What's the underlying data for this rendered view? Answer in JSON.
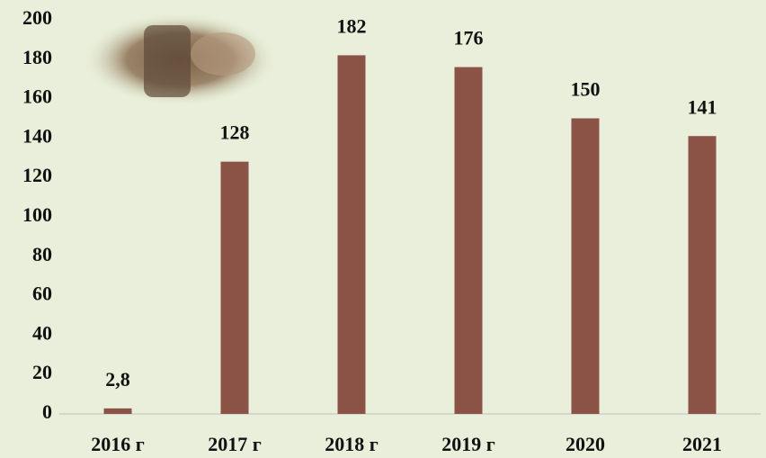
{
  "chart_data": {
    "type": "bar",
    "categories": [
      "2016 г",
      "2017 г",
      "2018 г",
      "2019 г",
      "2020",
      "2021"
    ],
    "values": [
      2.8,
      128,
      182,
      176,
      150,
      141
    ],
    "value_labels": [
      "2,8",
      "128",
      "182",
      "176",
      "150",
      "141"
    ],
    "color": "#8b5346",
    "ylim": [
      0,
      200
    ],
    "yticks": [
      0,
      20,
      40,
      60,
      80,
      100,
      120,
      140,
      160,
      180,
      200
    ],
    "grid": false
  }
}
